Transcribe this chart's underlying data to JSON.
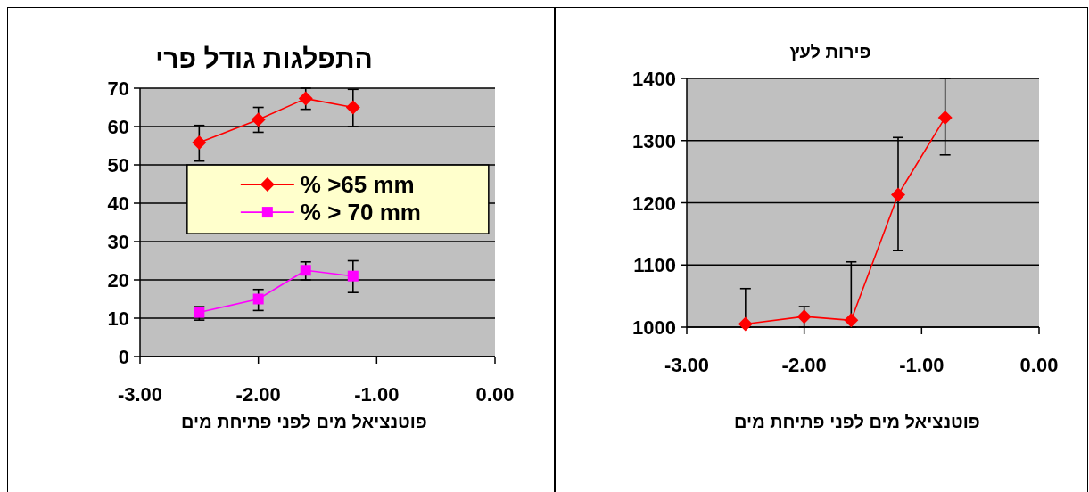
{
  "chart_data": [
    {
      "type": "line",
      "title": "התפלגות גודל פרי",
      "xlabel": "פוטנציאל מים לפני פתיחת מים",
      "xlim": [
        -3,
        0
      ],
      "xticks": [
        {
          "value": -3,
          "label": "-3.00"
        },
        {
          "value": -2,
          "label": "-2.00"
        },
        {
          "value": -1,
          "label": "-1.00"
        },
        {
          "value": 0,
          "label": "0.00"
        }
      ],
      "ylim": [
        0,
        70
      ],
      "yticks": [
        0,
        10,
        20,
        30,
        40,
        50,
        60,
        70
      ],
      "grid": "y",
      "legend": "center",
      "line_style": "solid",
      "series": [
        {
          "name": "% >65 mm",
          "color": "#ff0000",
          "marker": "diamond",
          "x": [
            -2.5,
            -2.0,
            -1.6,
            -1.2
          ],
          "values": [
            55.8,
            61.8,
            67.3,
            65.0
          ],
          "errors": [
            [
              51.0,
              60.3
            ],
            [
              58.5,
              65.0
            ],
            [
              64.5,
              70.0
            ],
            [
              60.0,
              69.7
            ]
          ]
        },
        {
          "name": "% > 70 mm",
          "color": "#ff00ff",
          "marker": "square",
          "x": [
            -2.5,
            -2.0,
            -1.6,
            -1.2
          ],
          "values": [
            11.5,
            15.0,
            22.5,
            21.0
          ],
          "errors": [
            [
              9.5,
              13.0
            ],
            [
              12.0,
              17.5
            ],
            [
              20.0,
              24.7
            ],
            [
              16.7,
              25.0
            ]
          ]
        }
      ]
    },
    {
      "type": "line",
      "title": "פירות לעץ",
      "xlabel": "פוטנציאל מים לפני פתיחת  מים",
      "xlim": [
        -3,
        0
      ],
      "xticks": [
        {
          "value": -3,
          "label": "-3.00"
        },
        {
          "value": -2,
          "label": "-2.00"
        },
        {
          "value": -1,
          "label": "-1.00"
        },
        {
          "value": 0,
          "label": "0.00"
        }
      ],
      "ylim": [
        1000,
        1400
      ],
      "yticks": [
        1000,
        1100,
        1200,
        1300,
        1400
      ],
      "grid": "y",
      "line_style": "solid",
      "series": [
        {
          "color": "#ff0000",
          "marker": "diamond",
          "x": [
            -2.5,
            -2.0,
            -1.6,
            -1.2,
            -0.8
          ],
          "values": [
            1005,
            1017,
            1011,
            1213,
            1337
          ],
          "errors": [
            [
              1000,
              1062
            ],
            [
              1000,
              1033
            ],
            [
              1000,
              1105
            ],
            [
              1123,
              1305
            ],
            [
              1277,
              1400
            ]
          ]
        }
      ]
    }
  ]
}
